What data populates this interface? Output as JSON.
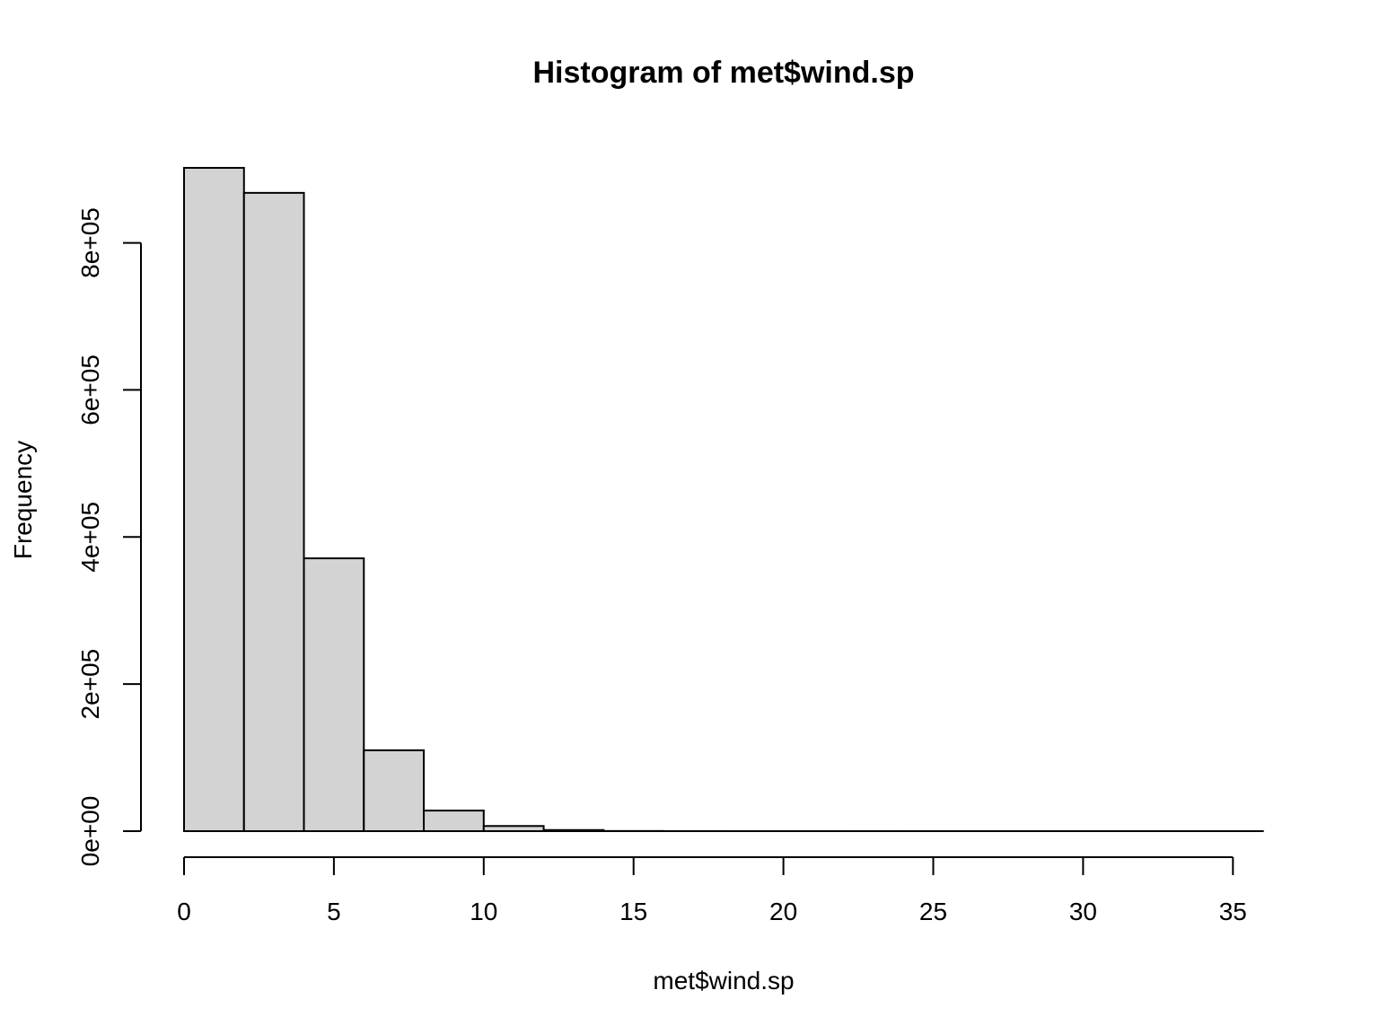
{
  "chart_data": {
    "type": "histogram",
    "title": "Histogram of met$wind.sp",
    "xlabel": "met$wind.sp",
    "ylabel": "Frequency",
    "bins": [
      {
        "x0": 0,
        "x1": 2,
        "count": 902000
      },
      {
        "x0": 2,
        "x1": 4,
        "count": 868000
      },
      {
        "x0": 4,
        "x1": 6,
        "count": 371000
      },
      {
        "x0": 6,
        "x1": 8,
        "count": 110000
      },
      {
        "x0": 8,
        "x1": 10,
        "count": 28000
      },
      {
        "x0": 10,
        "x1": 12,
        "count": 7000
      },
      {
        "x0": 12,
        "x1": 14,
        "count": 1500
      },
      {
        "x0": 14,
        "x1": 16,
        "count": 200
      },
      {
        "x0": 16,
        "x1": 18,
        "count": 50
      },
      {
        "x0": 18,
        "x1": 20,
        "count": 20
      },
      {
        "x0": 20,
        "x1": 22,
        "count": 10
      },
      {
        "x0": 22,
        "x1": 24,
        "count": 5
      },
      {
        "x0": 24,
        "x1": 26,
        "count": 3
      },
      {
        "x0": 26,
        "x1": 28,
        "count": 2
      },
      {
        "x0": 28,
        "x1": 30,
        "count": 1
      },
      {
        "x0": 30,
        "x1": 32,
        "count": 1
      },
      {
        "x0": 32,
        "x1": 34,
        "count": 1
      },
      {
        "x0": 34,
        "x1": 36,
        "count": 1
      }
    ],
    "x_ticks": [
      0,
      5,
      10,
      15,
      20,
      25,
      30,
      35
    ],
    "x_tick_labels": [
      "0",
      "5",
      "10",
      "15",
      "20",
      "25",
      "30",
      "35"
    ],
    "y_ticks": [
      0,
      200000,
      400000,
      600000,
      800000
    ],
    "y_tick_labels": [
      "0e+00",
      "2e+05",
      "4e+05",
      "6e+05",
      "8e+05"
    ],
    "xlim": [
      0,
      36
    ],
    "ylim": [
      0,
      902000
    ],
    "grid": false,
    "colors": {
      "bar_fill": "#d3d3d3",
      "bar_stroke": "#000000"
    }
  }
}
